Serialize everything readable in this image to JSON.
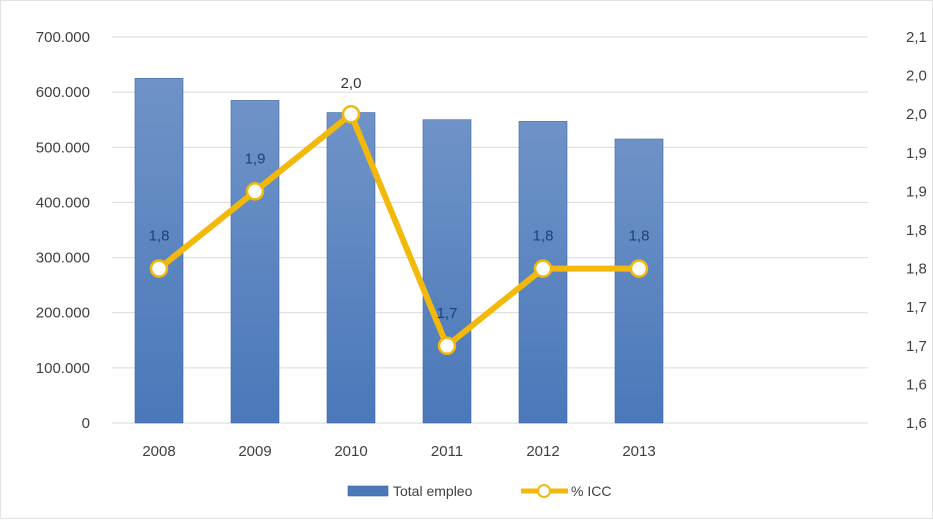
{
  "chart_data": {
    "type": "bar",
    "categories": [
      "2008",
      "2009",
      "2010",
      "2011",
      "2012",
      "2013"
    ],
    "series": [
      {
        "name": "Total empleo",
        "type": "bar",
        "axis": "left",
        "values": [
          625000,
          585000,
          563000,
          550000,
          547000,
          515000
        ]
      },
      {
        "name": "% ICC",
        "type": "line",
        "axis": "right",
        "values": [
          1.8,
          1.9,
          2.0,
          1.7,
          1.8,
          1.8
        ],
        "data_labels": [
          "1,8",
          "1,9",
          "2,0",
          "1,7",
          "1,8",
          "1,8"
        ]
      }
    ],
    "y_left": {
      "ylim": [
        0,
        700000
      ],
      "ticks": [
        0,
        100000,
        200000,
        300000,
        400000,
        500000,
        600000,
        700000
      ],
      "tick_labels": [
        "0",
        "100.000",
        "200.000",
        "300.000",
        "400.000",
        "500.000",
        "600.000",
        "700.000"
      ]
    },
    "y_right": {
      "ylim": [
        1.6,
        2.1
      ],
      "ticks": [
        1.6,
        1.65,
        1.7,
        1.75,
        1.8,
        1.85,
        1.9,
        1.95,
        2.0,
        2.05,
        2.1
      ],
      "tick_labels": [
        "1,6",
        "1,6",
        "1,7",
        "1,7",
        "1,8",
        "1,8",
        "1,9",
        "1,9",
        "2,0",
        "2,0",
        "2,1"
      ]
    },
    "grid": true,
    "legend": "bottom",
    "colors": {
      "bar": "#4a78b9",
      "bar_top": "#6f93c8",
      "line": "#f2b90a",
      "marker_fill": "#ffffff",
      "grid": "#d9d9d9",
      "tick_text": "#404040",
      "label_text": "#1f3f7a"
    }
  }
}
